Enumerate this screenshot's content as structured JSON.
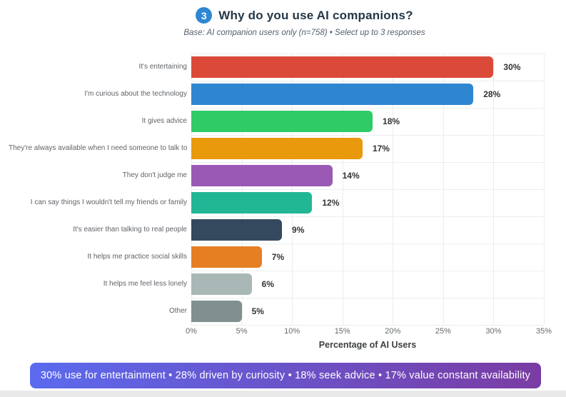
{
  "header": {
    "badge": "3",
    "title": "Why do you use AI companions?",
    "subtitle": "Base: AI companion users only (n=758) • Select up to 3 responses"
  },
  "chart_data": {
    "type": "bar",
    "orientation": "horizontal",
    "title": "Why do you use AI companions?",
    "categories": [
      "It's entertaining",
      "I'm curious about the technology",
      "It gives advice",
      "They're always available when I need someone to talk to",
      "They don't judge me",
      "I can say things I wouldn't tell my friends or family",
      "It's easier than talking to real people",
      "It helps me practice social skills",
      "It helps me feel less lonely",
      "Other"
    ],
    "values": [
      30,
      28,
      18,
      17,
      14,
      12,
      9,
      7,
      6,
      5
    ],
    "value_labels": [
      "30%",
      "28%",
      "18%",
      "17%",
      "14%",
      "12%",
      "9%",
      "7%",
      "6%",
      "5%"
    ],
    "bar_colors": [
      "#db4a38",
      "#2e86d1",
      "#2fcb66",
      "#e9990c",
      "#9b59b6",
      "#21b795",
      "#34495e",
      "#e67e22",
      "#a9b7b6",
      "#80908e"
    ],
    "xlabel": "Percentage of AI Users",
    "ylabel": "",
    "xlim": [
      0,
      35
    ],
    "tick_values": [
      0,
      5,
      10,
      15,
      20,
      25,
      30,
      35
    ],
    "tick_labels": [
      "0%",
      "5%",
      "10%",
      "15%",
      "20%",
      "25%",
      "30%",
      "35%"
    ],
    "grid": true,
    "legend": false
  },
  "footer": {
    "summary": "30% use for entertainment • 28% driven by curiosity • 18% seek advice • 17% value constant availability"
  },
  "colors": {
    "badge_bg": "#2e87d2",
    "title_text": "#243747",
    "subtitle_text": "#54606c",
    "banner_gradient_left": "#5b6aee",
    "banner_gradient_right": "#7a3ca3"
  }
}
